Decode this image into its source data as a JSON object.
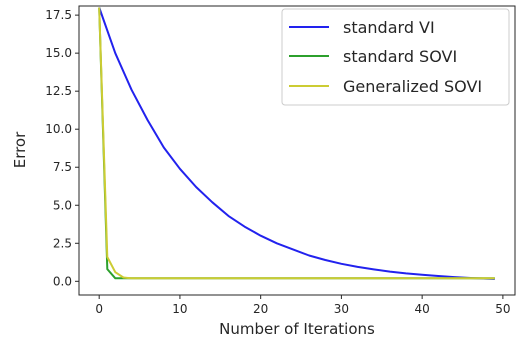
{
  "chart_data": {
    "type": "line",
    "title": "",
    "xlabel": "Number of Iterations",
    "ylabel": "Error",
    "xlim": [
      -2.5,
      51.5
    ],
    "ylim": [
      -0.9,
      18.1
    ],
    "x_ticks": [
      0,
      10,
      20,
      30,
      40,
      50
    ],
    "y_ticks": [
      0.0,
      2.5,
      5.0,
      7.5,
      10.0,
      12.5,
      15.0,
      17.5
    ],
    "x_tick_labels": [
      "0",
      "10",
      "20",
      "30",
      "40",
      "50"
    ],
    "y_tick_labels": [
      "0.0",
      "2.5",
      "5.0",
      "7.5",
      "10.0",
      "12.5",
      "15.0",
      "17.5"
    ],
    "grid": false,
    "legend_position": "upper right",
    "series": [
      {
        "name": "standard VI",
        "color": "#2222ee",
        "x": [
          0,
          2,
          4,
          6,
          8,
          10,
          12,
          14,
          16,
          18,
          20,
          22,
          24,
          26,
          28,
          30,
          32,
          34,
          36,
          38,
          40,
          42,
          44,
          46,
          48,
          49
        ],
        "values": [
          18.0,
          15.0,
          12.6,
          10.6,
          8.8,
          7.4,
          6.2,
          5.2,
          4.3,
          3.6,
          3.0,
          2.5,
          2.1,
          1.7,
          1.4,
          1.15,
          0.95,
          0.78,
          0.64,
          0.52,
          0.43,
          0.35,
          0.28,
          0.22,
          0.18,
          0.16
        ]
      },
      {
        "name": "standard SOVI",
        "color": "#2ca02c",
        "x": [
          0,
          1,
          2,
          3,
          4,
          5,
          10,
          20,
          30,
          40,
          49
        ],
        "values": [
          18.0,
          0.8,
          0.2,
          0.2,
          0.2,
          0.2,
          0.2,
          0.2,
          0.2,
          0.2,
          0.2
        ]
      },
      {
        "name": "Generalized SOVI",
        "color": "#cccc33",
        "x": [
          0,
          1,
          2,
          3,
          4,
          5,
          10,
          20,
          30,
          40,
          49
        ],
        "values": [
          18.0,
          1.6,
          0.6,
          0.25,
          0.2,
          0.2,
          0.2,
          0.2,
          0.2,
          0.2,
          0.2
        ]
      }
    ]
  }
}
